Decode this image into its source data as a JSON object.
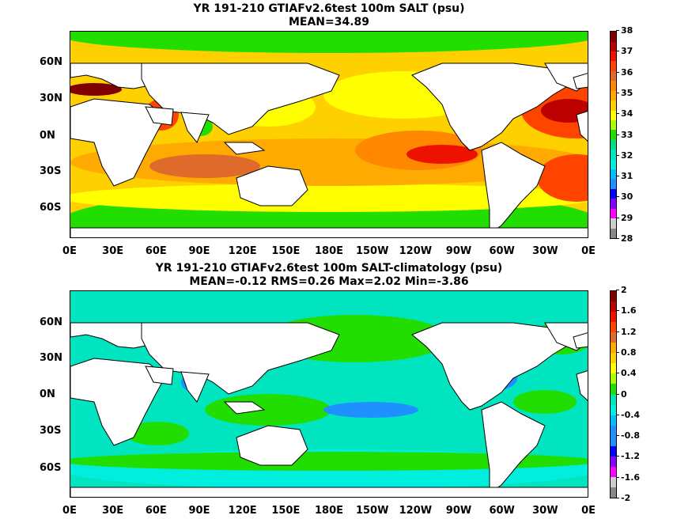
{
  "panels": [
    {
      "title": "YR 191-210 GTIAFv2.6test 100m SALT (psu)",
      "subtitle": "MEAN=34.89",
      "colorbar": {
        "labels": [
          "28",
          "29",
          "30",
          "31",
          "32",
          "33",
          "34",
          "35",
          "36",
          "37",
          "38"
        ],
        "colors": [
          "#888888",
          "#cccccc",
          "#ff00ff",
          "#8800ff",
          "#0000ff",
          "#1e90ff",
          "#00bfff",
          "#00eedd",
          "#00e5c0",
          "#00dd88",
          "#22dd00",
          "#aaff00",
          "#ffff00",
          "#ffd000",
          "#ffaa00",
          "#ff8800",
          "#e06a2a",
          "#ff4400",
          "#ee1100",
          "#bb0000",
          "#800000"
        ]
      },
      "ocean_color": "#ffd000",
      "regions": [
        {
          "name": "southern-ocean",
          "color": "#22dd00"
        },
        {
          "name": "north-polar",
          "color": "#22dd00"
        },
        {
          "name": "subtropical-band",
          "color": "#ffaa00"
        },
        {
          "name": "north-atlantic-high",
          "color": "#ff4400"
        },
        {
          "name": "north-atlantic-core",
          "color": "#bb0000"
        },
        {
          "name": "south-pacific-high",
          "color": "#ff8800"
        },
        {
          "name": "arabian-sea",
          "color": "#ff4400"
        },
        {
          "name": "bay-of-bengal",
          "color": "#22dd00"
        },
        {
          "name": "south-atlantic-high",
          "color": "#ff4400"
        },
        {
          "name": "med-sea",
          "color": "#800000"
        },
        {
          "name": "north-pacific-low",
          "color": "#ffff00"
        }
      ]
    },
    {
      "title": "YR 191-210 GTIAFv2.6test 100m SALT-climatology (psu)",
      "subtitle": "MEAN=-0.12   RMS=0.26   Max=2.02   Min=-3.86",
      "colorbar": {
        "labels": [
          "-2",
          "-1.6",
          "-1.2",
          "-0.8",
          "-0.4",
          "0",
          "0.4",
          "0.8",
          "1.2",
          "1.6",
          "2"
        ],
        "colors": [
          "#888888",
          "#cccccc",
          "#ff00ff",
          "#8800ff",
          "#0000ff",
          "#1e90ff",
          "#1e90ff",
          "#00bfff",
          "#00eedd",
          "#00e5c0",
          "#22dd00",
          "#aaff00",
          "#ffff00",
          "#ffd000",
          "#ffaa00",
          "#e06a2a",
          "#ff4400",
          "#ee1100",
          "#bb0000",
          "#800000"
        ]
      },
      "ocean_color": "#00e5c0",
      "regions": [
        {
          "name": "southern-ocean-band",
          "color": "#00eedd"
        },
        {
          "name": "positive-patches",
          "color": "#22dd00"
        },
        {
          "name": "negative-patches",
          "color": "#1e90ff"
        },
        {
          "name": "warm-spots",
          "color": "#ffd000"
        }
      ]
    }
  ],
  "lat_labels": [
    "60N",
    "30N",
    "0N",
    "30S",
    "60S"
  ],
  "lon_labels": [
    "0E",
    "30E",
    "60E",
    "90E",
    "120E",
    "150E",
    "180E",
    "150W",
    "120W",
    "90W",
    "60W",
    "30W",
    "0E"
  ],
  "land_color": "#ffffff"
}
